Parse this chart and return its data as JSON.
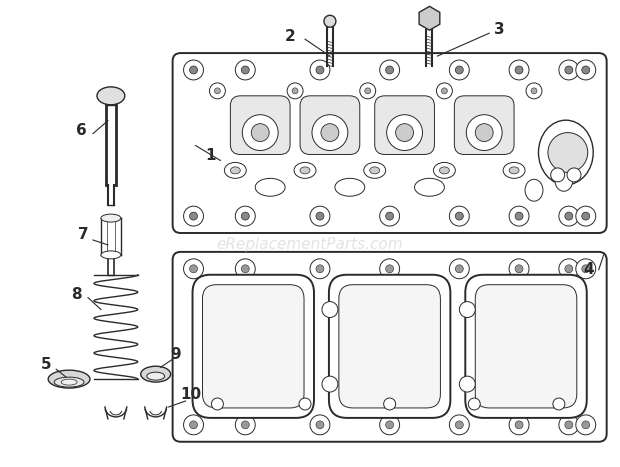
{
  "bg_color": "#ffffff",
  "line_color": "#2a2a2a",
  "watermark_text": "eReplacementParts.com",
  "watermark_color": "#cccccc",
  "watermark_fontsize": 11,
  "fig_width": 6.2,
  "fig_height": 4.67,
  "dpi": 100
}
